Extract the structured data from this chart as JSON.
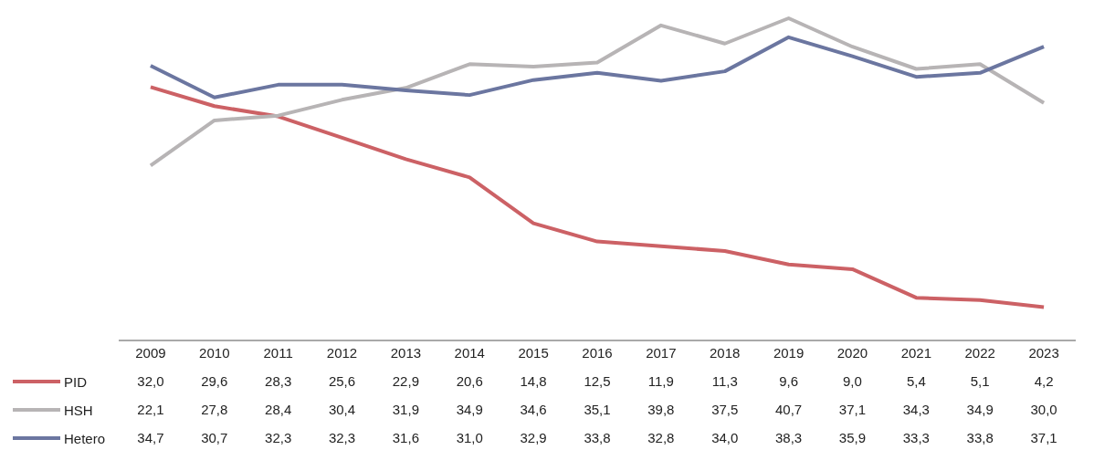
{
  "chart_data": {
    "type": "line",
    "categories": [
      "2009",
      "2010",
      "2011",
      "2012",
      "2013",
      "2014",
      "2015",
      "2016",
      "2017",
      "2018",
      "2019",
      "2020",
      "2021",
      "2022",
      "2023"
    ],
    "series": [
      {
        "name": "PID",
        "color": "#cc6165",
        "values": [
          32.0,
          29.6,
          28.3,
          25.6,
          22.9,
          20.6,
          14.8,
          12.5,
          11.9,
          11.3,
          9.6,
          9.0,
          5.4,
          5.1,
          4.2
        ],
        "value_labels": [
          "32,0",
          "29,6",
          "28,3",
          "25,6",
          "22,9",
          "20,6",
          "14,8",
          "12,5",
          "11,9",
          "11,3",
          "9,6",
          "9,0",
          "5,4",
          "5,1",
          "4,2"
        ]
      },
      {
        "name": "HSH",
        "color": "#b7b4b5",
        "values": [
          22.1,
          27.8,
          28.4,
          30.4,
          31.9,
          34.9,
          34.6,
          35.1,
          39.8,
          37.5,
          40.7,
          37.1,
          34.3,
          34.9,
          30.0
        ],
        "value_labels": [
          "22,1",
          "27,8",
          "28,4",
          "30,4",
          "31,9",
          "34,9",
          "34,6",
          "35,1",
          "39,8",
          "37,5",
          "40,7",
          "37,1",
          "34,3",
          "34,9",
          "30,0"
        ]
      },
      {
        "name": "Hetero",
        "color": "#6b76a0",
        "values": [
          34.7,
          30.7,
          32.3,
          32.3,
          31.6,
          31.0,
          32.9,
          33.8,
          32.8,
          34.0,
          38.3,
          35.9,
          33.3,
          33.8,
          37.1
        ],
        "value_labels": [
          "34,7",
          "30,7",
          "32,3",
          "32,3",
          "31,6",
          "31,0",
          "32,9",
          "33,8",
          "32,8",
          "34,0",
          "38,3",
          "35,9",
          "33,3",
          "33,8",
          "37,1"
        ]
      }
    ],
    "tick_labels": "x",
    "legend": "bottom left",
    "marker": "none",
    "line_style": "solid"
  }
}
